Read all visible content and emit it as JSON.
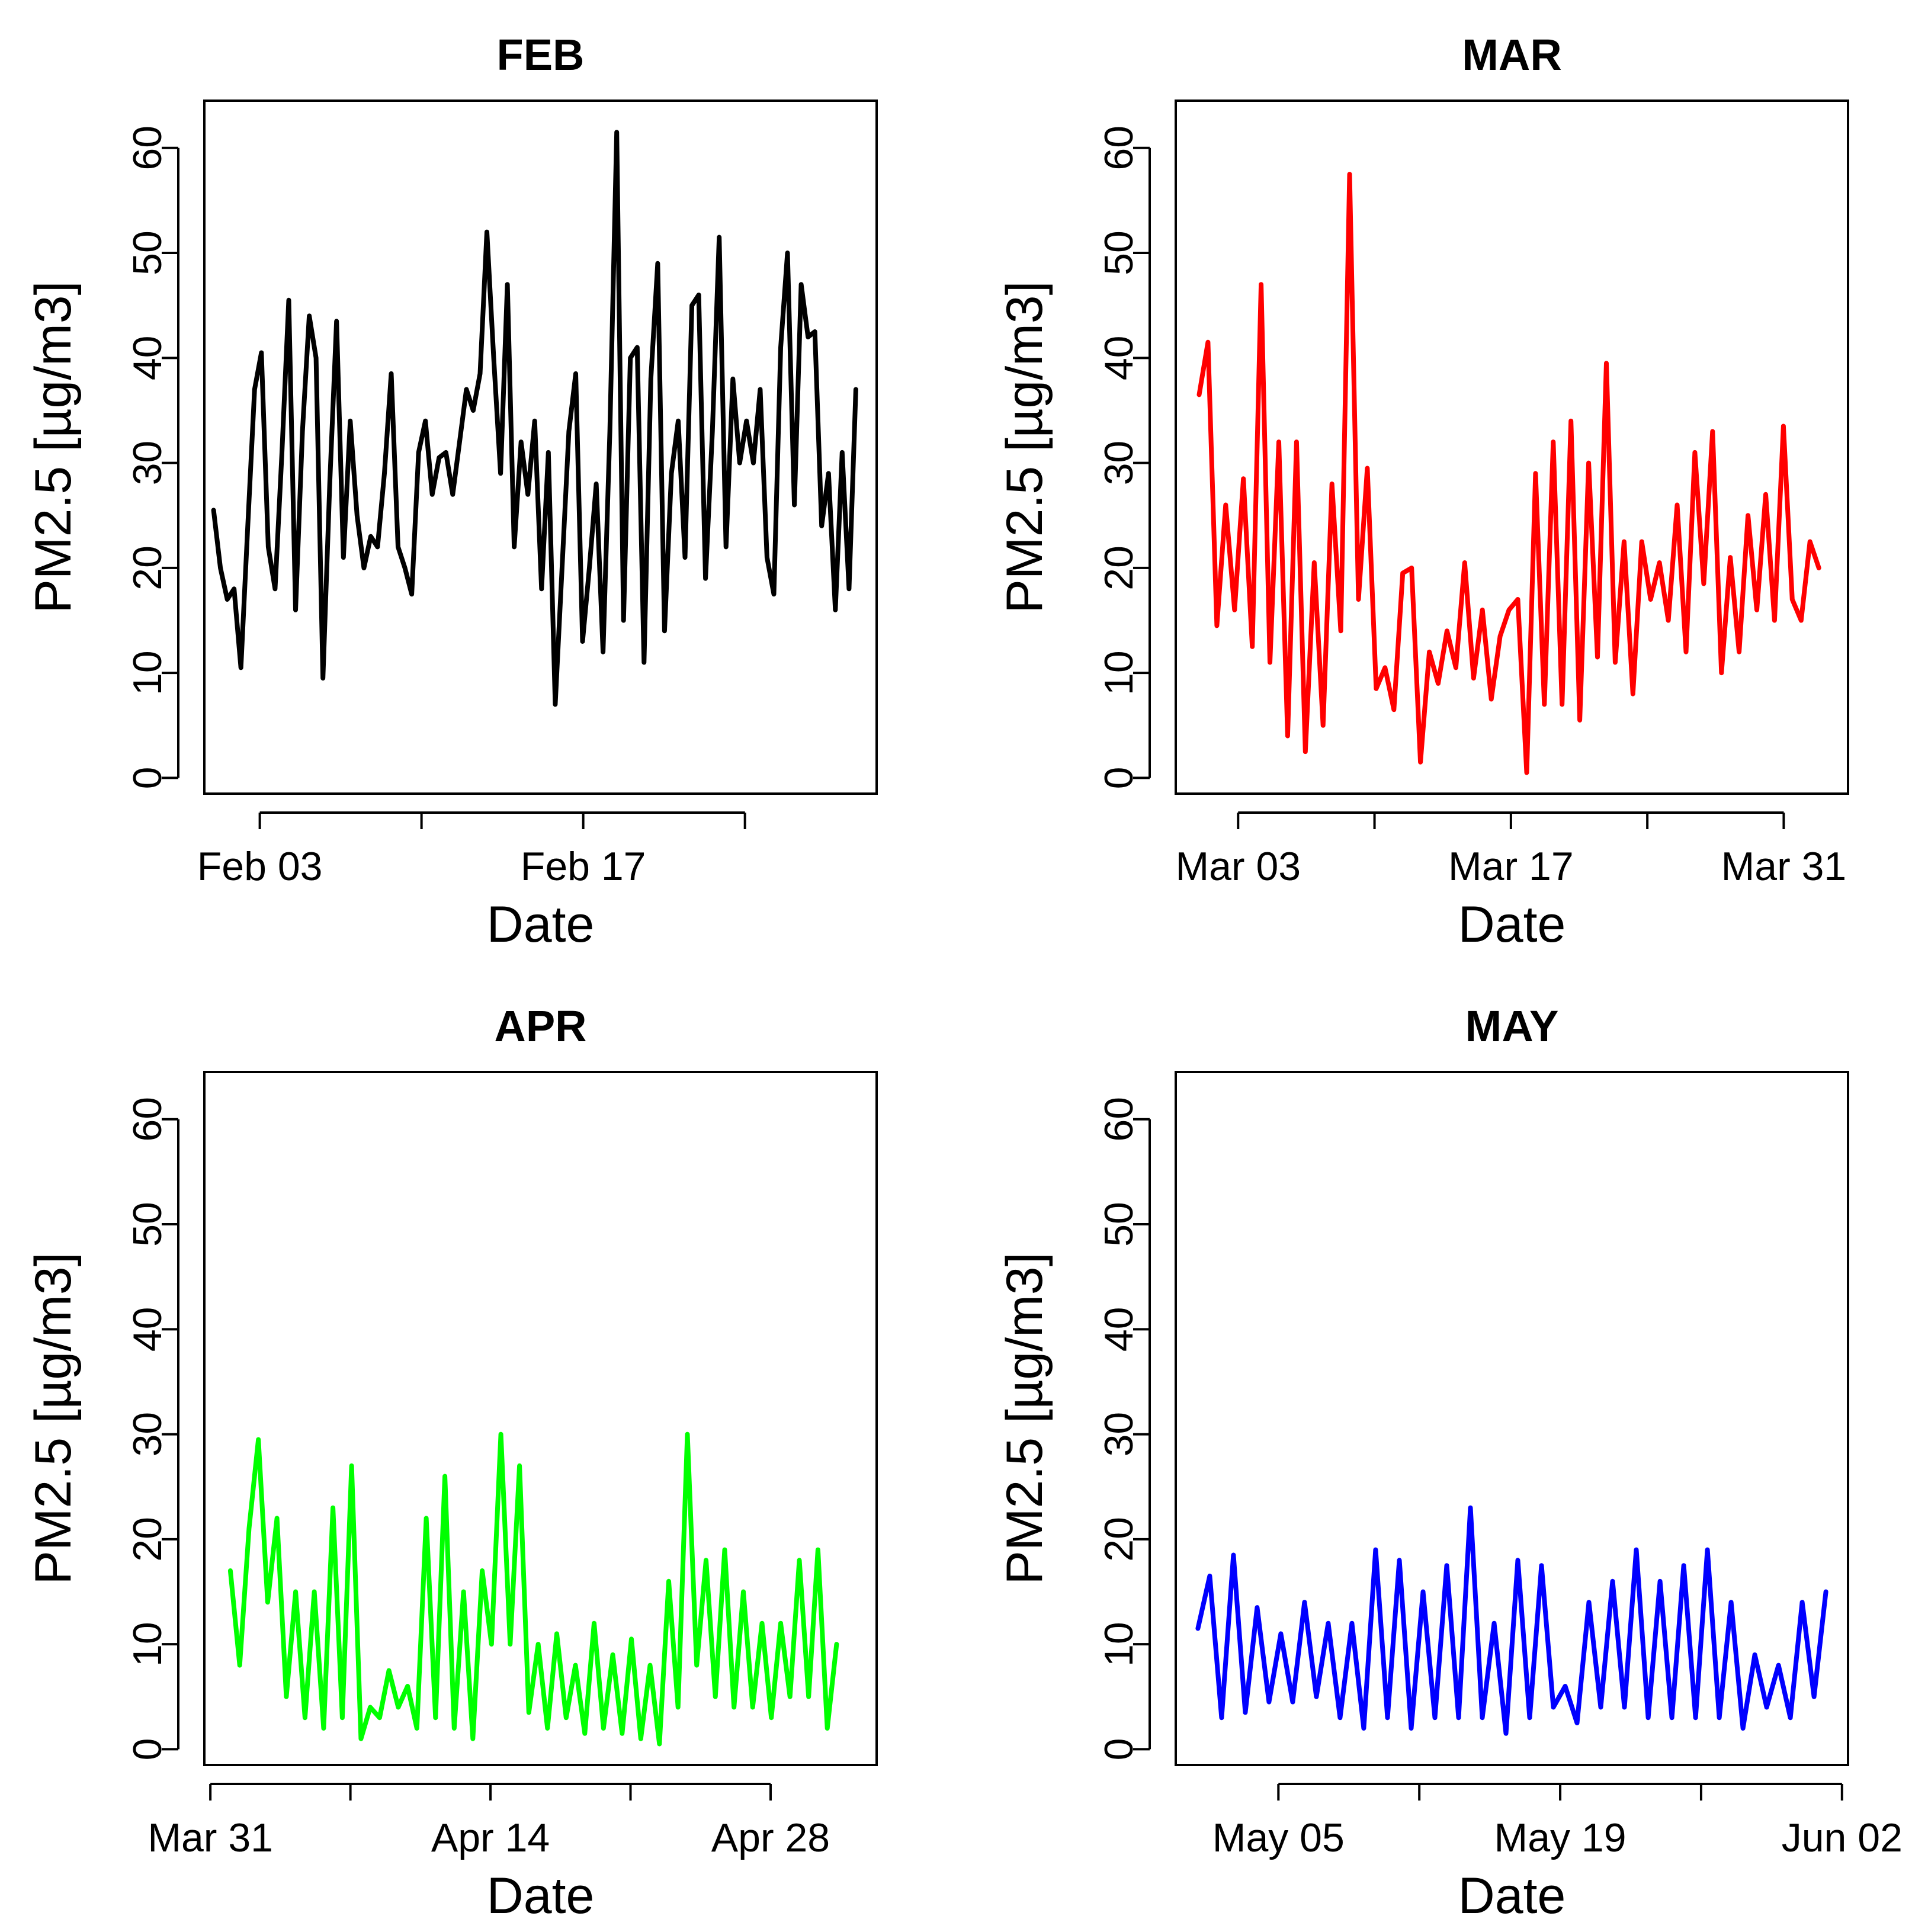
{
  "figure": {
    "panels": [
      {
        "title": "FEB",
        "color": "#000000"
      },
      {
        "title": "MAR",
        "color": "#ff0000"
      },
      {
        "title": "APR",
        "color": "#00ff00"
      },
      {
        "title": "MAY",
        "color": "#0000ff"
      }
    ]
  },
  "chart_data": [
    {
      "type": "line",
      "title": "FEB",
      "xlabel": "Date",
      "ylabel": "PM2.5 [µg/m3]",
      "color": "#000000",
      "ylim": [
        -1.5,
        64.5
      ],
      "yticks": [
        0,
        10,
        20,
        30,
        40,
        50,
        60
      ],
      "xlim": [
        -2.4,
        26.7
      ],
      "xtick_positions": [
        0,
        7,
        14,
        21
      ],
      "xtick_labels": [
        "Feb 03",
        "",
        "Feb 17",
        ""
      ],
      "x_start_day": -2,
      "x_end_day": 25.8,
      "series": [
        {
          "name": "FEB",
          "keypoints": [
            25.5,
            20,
            17,
            18,
            10.5,
            24,
            37,
            40.5,
            22,
            18,
            31,
            45.5,
            16,
            33,
            44,
            40,
            9.5,
            28,
            43.5,
            21,
            34,
            25,
            20,
            23,
            22,
            29,
            38.5,
            22,
            20,
            17.5,
            31,
            34,
            27,
            30.5,
            31,
            27,
            32,
            37,
            35,
            38.5,
            52,
            40,
            29,
            47,
            22,
            32,
            27,
            34,
            18,
            31,
            7,
            20,
            33,
            38.5,
            13,
            20,
            28,
            12,
            33,
            61.5,
            15,
            40,
            41,
            11,
            38,
            49,
            14,
            29,
            34,
            21,
            45,
            46,
            19,
            33,
            51.5,
            22,
            38,
            30,
            34,
            30,
            37,
            21,
            17.5,
            41,
            50,
            26,
            47,
            42,
            42.5,
            24,
            29,
            16,
            31,
            18,
            37
          ]
        }
      ]
    },
    {
      "type": "line",
      "title": "MAR",
      "xlabel": "Date",
      "ylabel": "PM2.5 [µg/m3]",
      "color": "#ff0000",
      "ylim": [
        -1.5,
        64.5
      ],
      "yticks": [
        0,
        10,
        20,
        30,
        40,
        50,
        60
      ],
      "xlim": [
        -3.2,
        31.3
      ],
      "xtick_positions": [
        0,
        7,
        14,
        21,
        28
      ],
      "xtick_labels": [
        "Mar 03",
        "",
        "Mar 17",
        "",
        "Mar 31"
      ],
      "x_start_day": -2,
      "x_end_day": 29.8,
      "series": [
        {
          "name": "MAR",
          "keypoints": [
            36.5,
            41.5,
            14.5,
            26,
            16,
            28.5,
            12.5,
            47,
            11,
            32,
            4,
            32,
            2.5,
            20.5,
            5,
            28,
            14,
            57.5,
            17,
            29.5,
            8.5,
            10.5,
            6.5,
            19.5,
            20,
            1.5,
            12,
            9,
            14,
            10.5,
            20.5,
            9.5,
            16,
            7.5,
            13.5,
            16,
            17,
            0.5,
            29,
            7,
            32,
            7,
            34,
            5.5,
            30,
            11.5,
            39.5,
            11,
            22.5,
            8,
            22.5,
            17,
            20.5,
            15,
            26,
            12,
            31,
            18.5,
            33,
            10,
            21,
            12,
            25,
            16,
            27,
            15,
            33.5,
            17,
            15,
            22.5,
            20
          ]
        }
      ]
    },
    {
      "type": "line",
      "title": "APR",
      "xlabel": "Date",
      "ylabel": "PM2.5 [µg/m3]",
      "color": "#00ff00",
      "ylim": [
        -1.5,
        64.5
      ],
      "yticks": [
        0,
        10,
        20,
        30,
        40,
        50,
        60
      ],
      "xlim": [
        -0.3,
        33.3
      ],
      "xtick_positions": [
        0,
        7,
        14,
        21,
        28
      ],
      "xtick_labels": [
        "Mar 31",
        "",
        "Apr 14",
        "",
        "Apr 28"
      ],
      "x_start_day": 1,
      "x_end_day": 31.3,
      "series": [
        {
          "name": "APR",
          "keypoints": [
            17,
            8,
            21,
            29.5,
            14,
            22,
            5,
            15,
            3,
            15,
            2,
            23,
            3,
            27,
            1,
            4,
            3,
            7.5,
            4,
            6,
            2,
            22,
            3,
            26,
            2,
            15,
            1,
            17,
            10,
            30,
            10,
            27,
            3.5,
            10,
            2,
            11,
            3,
            8,
            1.5,
            12,
            2,
            9,
            1.5,
            10.5,
            1,
            8,
            0.5,
            16,
            4,
            30,
            8,
            18,
            5,
            19,
            4,
            15,
            4,
            12,
            3,
            12,
            5,
            18,
            5,
            19,
            2,
            10
          ]
        }
      ]
    },
    {
      "type": "line",
      "title": "MAY",
      "xlabel": "Date",
      "ylabel": "PM2.5 [µg/m3]",
      "color": "#0000ff",
      "ylim": [
        -1.5,
        64.5
      ],
      "yticks": [
        0,
        10,
        20,
        30,
        40,
        50,
        60
      ],
      "xlim": [
        -5.1,
        28.3
      ],
      "xtick_positions": [
        0,
        7,
        14,
        21,
        28
      ],
      "xtick_labels": [
        "May 05",
        "",
        "May 19",
        "",
        "Jun 02"
      ],
      "x_start_day": -4,
      "x_end_day": 27.2,
      "series": [
        {
          "name": "MAY",
          "keypoints": [
            11.5,
            16.5,
            3,
            18.5,
            3.5,
            13.5,
            4.5,
            11,
            4.5,
            14,
            5,
            12,
            3,
            12,
            2,
            19,
            3,
            18,
            2,
            15,
            3,
            17.5,
            3,
            23,
            3,
            12,
            1.5,
            18,
            3,
            17.5,
            4,
            6,
            2.5,
            14,
            4,
            16,
            4,
            19,
            3,
            16,
            3,
            17.5,
            3,
            19,
            3,
            14,
            2,
            9,
            4,
            8,
            3,
            14,
            5,
            15
          ]
        }
      ]
    }
  ]
}
